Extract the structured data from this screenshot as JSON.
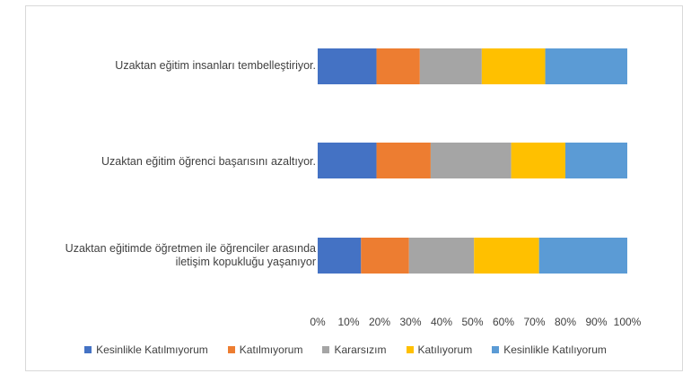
{
  "chart_data": {
    "type": "bar",
    "orientation": "horizontal",
    "stacked": "percent",
    "categories": [
      "Uzaktan eğitim insanları tembelleştiriyor.",
      "Uzaktan eğitim öğrenci başarısını azaltıyor.",
      "Uzaktan eğitimde öğretmen ile öğrenciler arasında iletişim kopukluğu yaşanıyor"
    ],
    "series": [
      {
        "name": "Kesinlikle Katılmıyorum",
        "color": "#4472c4",
        "values": [
          19,
          19,
          14
        ]
      },
      {
        "name": "Katılmıyorum",
        "color": "#ed7d31",
        "values": [
          14,
          17.5,
          15.5
        ]
      },
      {
        "name": "Kararsızım",
        "color": "#a5a5a5",
        "values": [
          20,
          26,
          21
        ]
      },
      {
        "name": "Katılıyorum",
        "color": "#ffc000",
        "values": [
          20.5,
          17.5,
          21
        ]
      },
      {
        "name": "Kesinlikle Katılıyorum",
        "color": "#5b9bd5",
        "values": [
          26.5,
          20,
          28.5
        ]
      }
    ],
    "x_ticks": [
      "0%",
      "10%",
      "20%",
      "30%",
      "40%",
      "50%",
      "60%",
      "70%",
      "80%",
      "90%",
      "100%"
    ],
    "xlim": [
      0,
      100
    ],
    "grid": false,
    "legend_position": "bottom"
  }
}
